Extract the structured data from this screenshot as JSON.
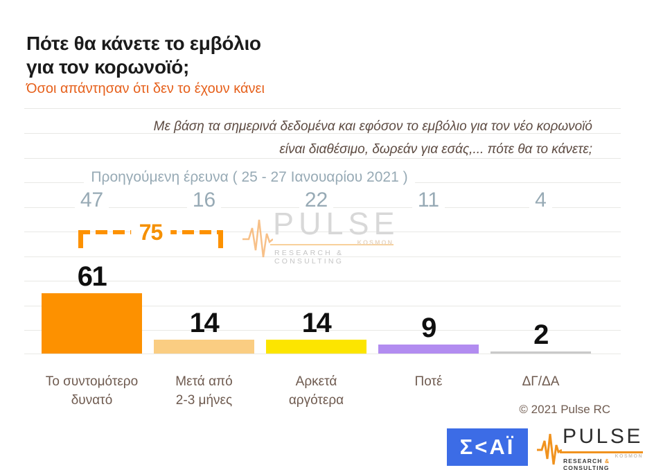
{
  "header": {
    "title_line1": "Πότε θα κάνετε το εμβόλιο",
    "title_line2": "για τον κορωνοϊό;",
    "subtitle": "Όσοι απάντησαν ότι δεν το έχουν κάνει"
  },
  "question": {
    "line1": "Με βάση τα σημερινά δεδομένα και εφόσον το εμβόλιο για τον νέο κορωνοϊό",
    "line2": "είναι διαθέσιμο, δωρεάν για εσάς,... πότε θα το κάνετε;"
  },
  "previous_survey_label": "Προηγούμενη έρευνα ( 25 - 27  Ιανουαρίου  2021 )",
  "chart_data": {
    "type": "bar",
    "title": "Πότε θα κάνετε το εμβόλιο για τον κορωνοϊό;",
    "subtitle": "Όσοι απάντησαν ότι δεν το έχουν κάνει",
    "categories": [
      "Το συντομότερο δυνατό",
      "Μετά από 2-3 μήνες",
      "Αρκετά αργότερα",
      "Ποτέ",
      "ΔΓ/ΔΑ"
    ],
    "categories_lines": [
      [
        "Το συντομότερο",
        "δυνατό"
      ],
      [
        "Μετά από",
        "2-3 μήνες"
      ],
      [
        "Αρκετά",
        "αργότερα"
      ],
      [
        "Ποτέ"
      ],
      [
        "ΔΓ/ΔΑ"
      ]
    ],
    "series": [
      {
        "name": "",
        "values": [
          61,
          14,
          14,
          9,
          2
        ]
      },
      {
        "name": "Προηγούμενη έρευνα ( 25 - 27 Ιανουαρίου 2021 )",
        "values": [
          47,
          16,
          22,
          11,
          4
        ]
      }
    ],
    "bar_colors": [
      "#fd9100",
      "#facd82",
      "#fce500",
      "#b28cf0",
      "#c9c9c9"
    ],
    "annotation_sum": {
      "value": 75,
      "covers": [
        "Το συντομότερο δυνατό",
        "Μετά από 2-3 μήνες"
      ]
    },
    "ylim": [
      0,
      100
    ],
    "grid": true,
    "legend_position": "none"
  },
  "watermark": {
    "name": "PULSE",
    "kosmon": "KOSMON",
    "tagline": "RESEARCH & CONSULTING"
  },
  "footer": {
    "copyright": "© 2021 Pulse RC",
    "skai_logo": "Σ<ΑΪ",
    "pulse_logo": {
      "name": "PULSE",
      "kosmon": "KOSMON",
      "tagline_research": "RESEARCH",
      "tagline_amp": "&",
      "tagline_consulting": "CONSULTING"
    }
  },
  "colors": {
    "accent_orange": "#fd9100",
    "subtitle_orange": "#e6601b",
    "prev_gray_blue": "#97aab5",
    "category_brown": "#6e5a4f",
    "skai_blue": "#3c6ce6"
  }
}
